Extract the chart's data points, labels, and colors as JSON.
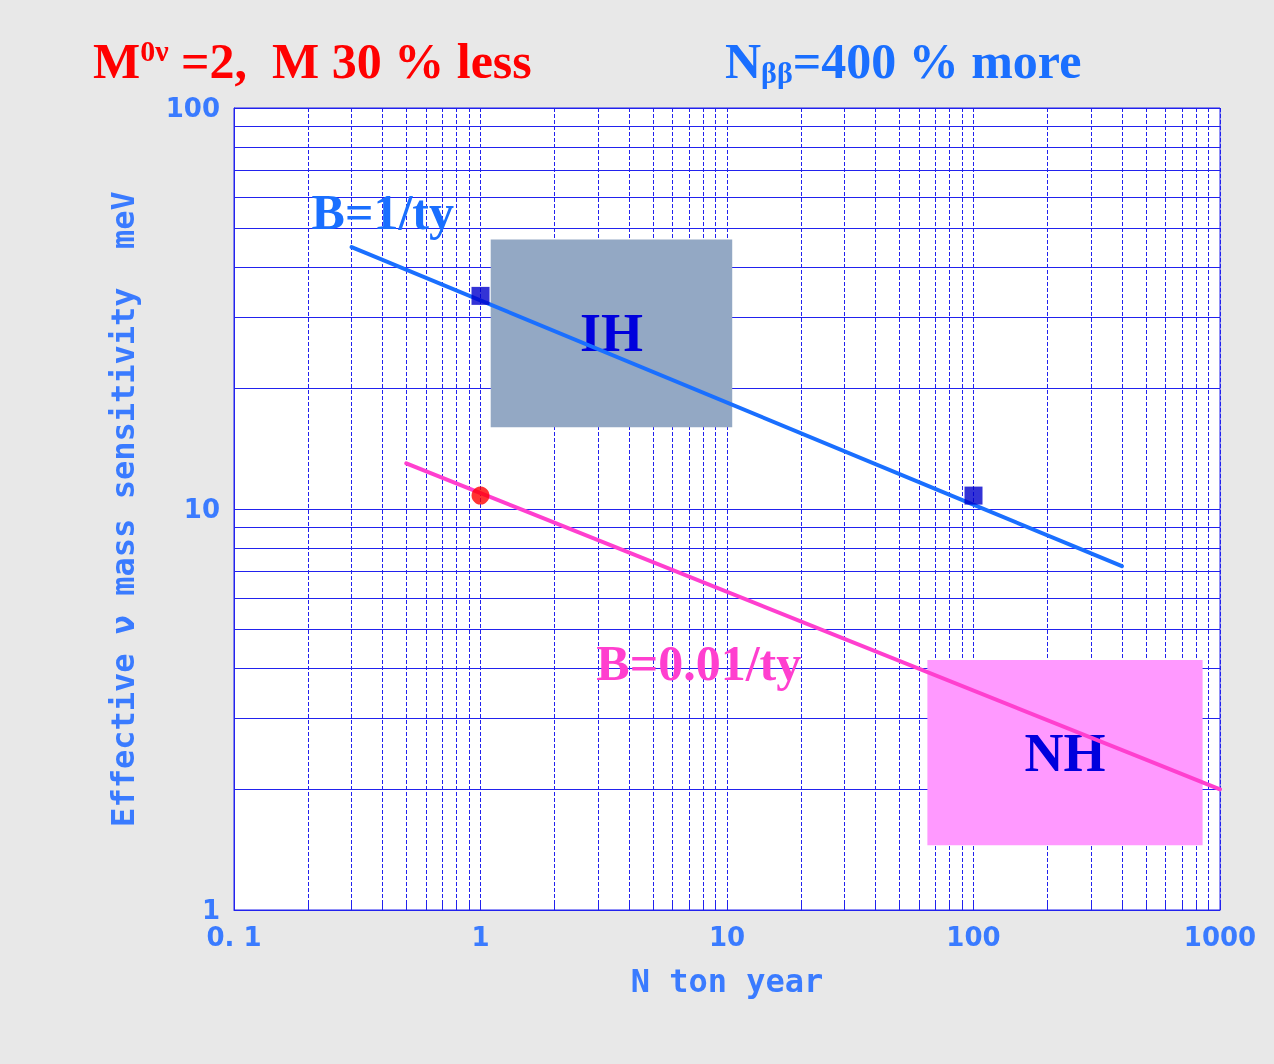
{
  "chart_data": {
    "type": "line",
    "title": "M$^{0ν}$ =2,  M 30 % less",
    "subtitle": "N$_{ββ}$=400 % more",
    "xlabel": "N ton year",
    "ylabel": "Effective ν mass sensitivity  meV",
    "log": "xy",
    "grid": true,
    "xlim": [
      0.1,
      1000
    ],
    "xticks": [
      {
        "value": 0.1,
        "label": "0. 1"
      },
      {
        "value": 0.2,
        "label": null
      },
      {
        "value": 0.3,
        "label": null
      },
      {
        "value": 0.4,
        "label": null
      },
      {
        "value": 0.5,
        "label": null
      },
      {
        "value": 0.6,
        "label": null
      },
      {
        "value": 0.7,
        "label": null
      },
      {
        "value": 0.8,
        "label": null
      },
      {
        "value": 0.9,
        "label": null
      },
      1,
      {
        "value": 2,
        "label": null
      },
      {
        "value": 3,
        "label": null
      },
      {
        "value": 4,
        "label": null
      },
      {
        "value": 5,
        "label": null
      },
      {
        "value": 6,
        "label": null
      },
      {
        "value": 7,
        "label": null
      },
      {
        "value": 8,
        "label": null
      },
      {
        "value": 9,
        "label": null
      },
      10,
      {
        "value": 20,
        "label": null
      },
      {
        "value": 30,
        "label": null
      },
      {
        "value": 40,
        "label": null
      },
      {
        "value": 50,
        "label": null
      },
      {
        "value": 60,
        "label": null
      },
      {
        "value": 70,
        "label": null
      },
      {
        "value": 80,
        "label": null
      },
      {
        "value": 90,
        "label": null
      },
      100,
      {
        "value": 200,
        "label": null
      },
      {
        "value": 300,
        "label": null
      },
      {
        "value": 400,
        "label": null
      },
      {
        "value": 500,
        "label": null
      },
      {
        "value": 600,
        "label": null
      },
      {
        "value": 700,
        "label": null
      },
      {
        "value": 800,
        "label": null
      },
      {
        "value": 900,
        "label": null
      },
      1000
    ],
    "ylim": [
      1,
      100
    ],
    "yticks": [
      1,
      {
        "value": 2,
        "label": null
      },
      {
        "value": 3,
        "label": null
      },
      {
        "value": 4,
        "label": null
      },
      {
        "value": 5,
        "label": null
      },
      {
        "value": 6,
        "label": null
      },
      {
        "value": 7,
        "label": null
      },
      {
        "value": 8,
        "label": null
      },
      {
        "value": 9,
        "label": null
      },
      10,
      {
        "value": 20,
        "label": null
      },
      {
        "value": 30,
        "label": null
      },
      {
        "value": 40,
        "label": null
      },
      {
        "value": 50,
        "label": null
      },
      {
        "value": 60,
        "label": null
      },
      {
        "value": 70,
        "label": null
      },
      {
        "value": 80,
        "label": null
      },
      {
        "value": 90,
        "label": null
      },
      100
    ],
    "series": [
      {
        "type": "area",
        "name": "IH",
        "color": "#93a8c4",
        "x": [
          1.1,
          1.1,
          10.5,
          10.5
        ],
        "values": [
          16,
          47,
          47,
          16
        ]
      },
      {
        "type": "area",
        "name": "NH",
        "color": "#ff99ff",
        "x": [
          65,
          65,
          850,
          850
        ],
        "values": [
          1.45,
          4.2,
          4.2,
          1.45
        ]
      },
      {
        "name": "B=1/ty",
        "color": "#1a6fff",
        "marker": "none",
        "x": [
          0.3,
          400
        ],
        "values": [
          45,
          7.2
        ]
      },
      {
        "name": "B=0.01/ty",
        "color": "#ff3fcf",
        "marker": "none",
        "x": [
          0.5,
          1000
        ],
        "values": [
          13,
          2
        ]
      },
      {
        "type": "scatter",
        "color": "#0000cc",
        "marker": "square",
        "x": [
          1,
          100
        ],
        "values": [
          34,
          10.8
        ]
      },
      {
        "type": "scatter",
        "color": "#ff0000",
        "marker": "circle",
        "x": [
          1
        ],
        "values": [
          10.8
        ]
      }
    ]
  }
}
